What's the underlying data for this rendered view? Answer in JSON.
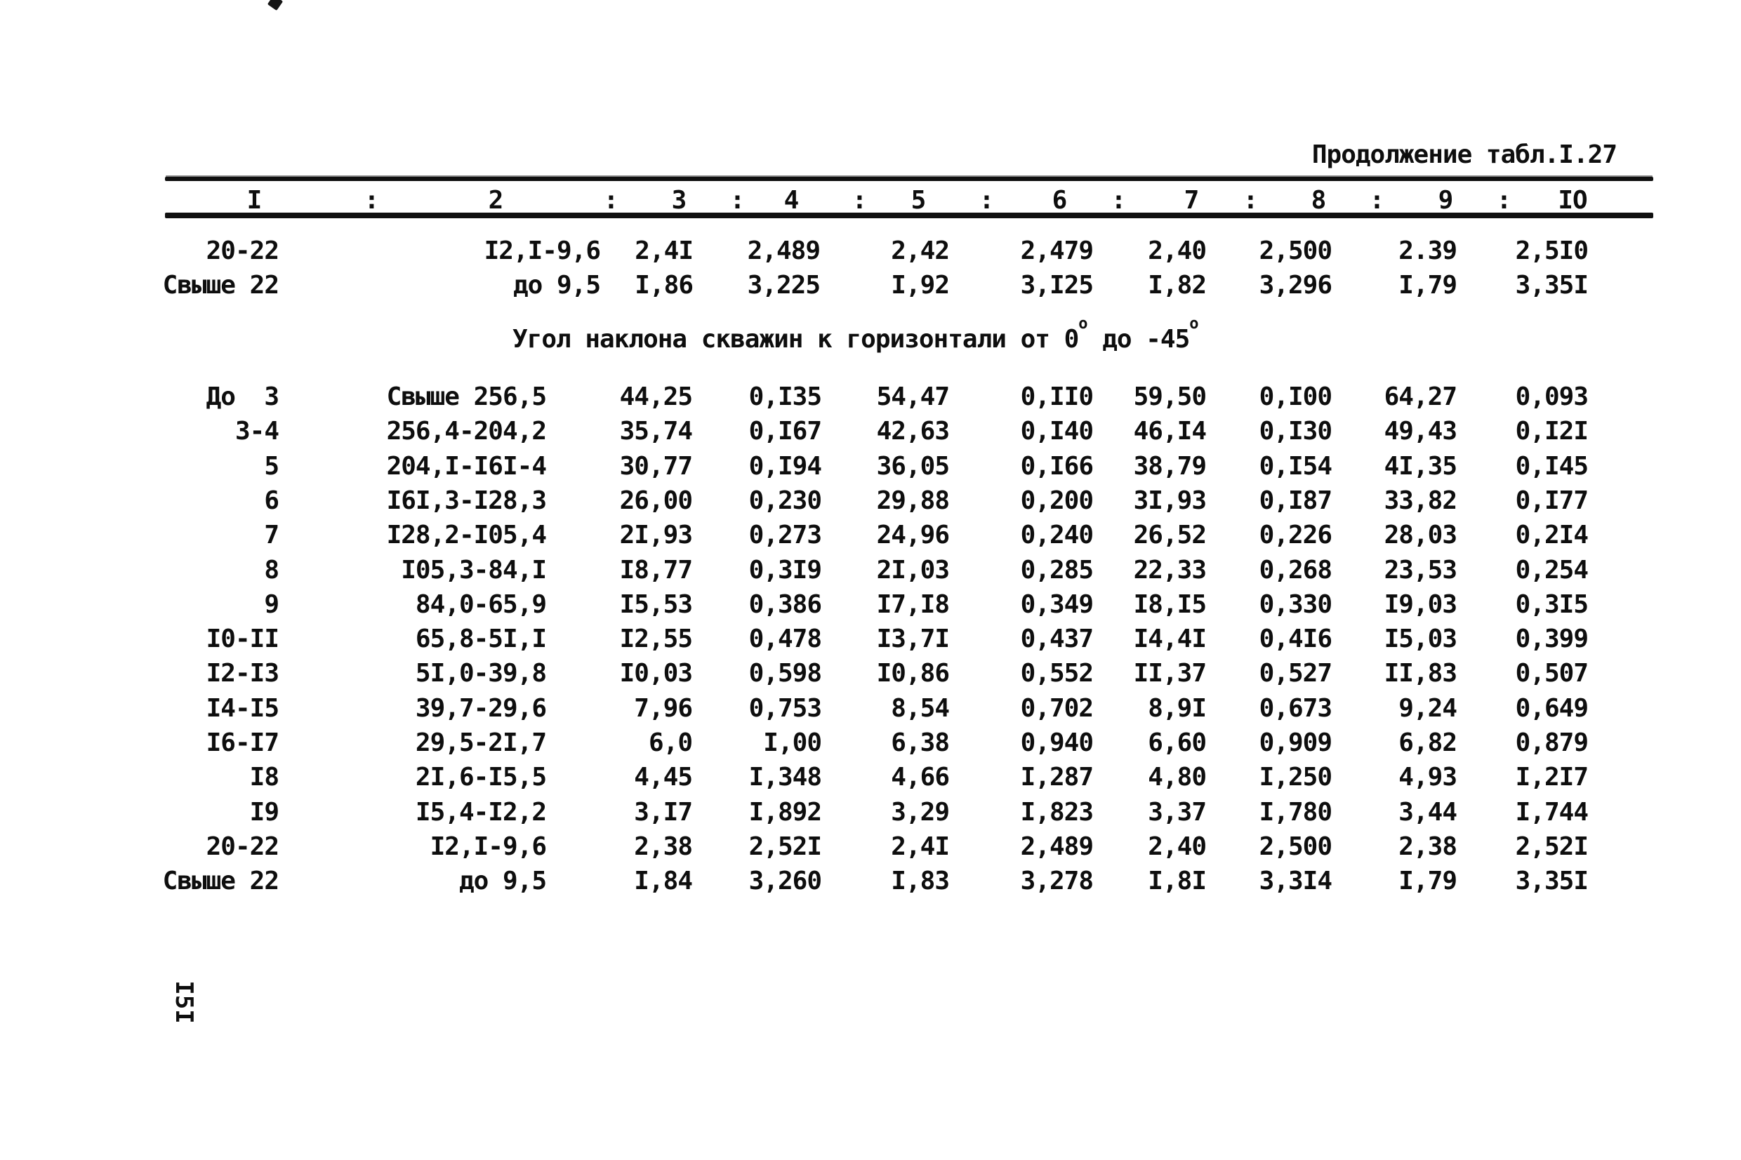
{
  "page": {
    "title": "Продолжение табл.I.27",
    "page_number": "I5I"
  },
  "colors": {
    "ink": "#0e0e0e",
    "paper": "#ffffff"
  },
  "table": {
    "header_cells": [
      "I",
      "2",
      "3",
      "4",
      "5",
      "6",
      "7",
      "8",
      "9",
      "IO"
    ],
    "header_separator": ":",
    "top_rows": [
      [
        "20-22",
        "I2,I-9,6",
        "2,4I",
        "2,489",
        "2,42",
        "2,479",
        "2,40",
        "2,500",
        "2.39",
        "2,5I0"
      ],
      [
        "Свыше 22",
        "до 9,5",
        "I,86",
        "3,225",
        "I,92",
        "3,I25",
        "I,82",
        "3,296",
        "I,79",
        "3,35I"
      ]
    ],
    "section_heading": {
      "part1": "Угол наклона скважин к горизонтали от 0",
      "sup1": "о",
      "part2": " до -45",
      "sup2": "о"
    },
    "body_rows": [
      [
        "До  3",
        "Свыше 256,5",
        "44,25",
        "0,I35",
        "54,47",
        "0,II0",
        "59,50",
        "0,I00",
        "64,27",
        "0,093"
      ],
      [
        "3-4",
        "256,4-204,2",
        "35,74",
        "0,I67",
        "42,63",
        "0,I40",
        "46,I4",
        "0,I30",
        "49,43",
        "0,I2I"
      ],
      [
        "5",
        "204,I-I6I-4",
        "30,77",
        "0,I94",
        "36,05",
        "0,I66",
        "38,79",
        "0,I54",
        "4I,35",
        "0,I45"
      ],
      [
        "6",
        "I6I,3-I28,3",
        "26,00",
        "0,230",
        "29,88",
        "0,200",
        "3I,93",
        "0,I87",
        "33,82",
        "0,I77"
      ],
      [
        "7",
        "I28,2-I05,4",
        "2I,93",
        "0,273",
        "24,96",
        "0,240",
        "26,52",
        "0,226",
        "28,03",
        "0,2I4"
      ],
      [
        "8",
        "I05,3-84,I",
        "I8,77",
        "0,3I9",
        "2I,03",
        "0,285",
        "22,33",
        "0,268",
        "23,53",
        "0,254"
      ],
      [
        "9",
        "84,0-65,9",
        "I5,53",
        "0,386",
        "I7,I8",
        "0,349",
        "I8,I5",
        "0,330",
        "I9,03",
        "0,3I5"
      ],
      [
        "I0-II",
        "65,8-5I,I",
        "I2,55",
        "0,478",
        "I3,7I",
        "0,437",
        "I4,4I",
        "0,4I6",
        "I5,03",
        "0,399"
      ],
      [
        "I2-I3",
        "5I,0-39,8",
        "I0,03",
        "0,598",
        "I0,86",
        "0,552",
        "II,37",
        "0,527",
        "II,83",
        "0,507"
      ],
      [
        "I4-I5",
        "39,7-29,6",
        "7,96",
        "0,753",
        "8,54",
        "0,702",
        "8,9I",
        "0,673",
        "9,24",
        "0,649"
      ],
      [
        "I6-I7",
        "29,5-2I,7",
        "6,0",
        "I,00",
        "6,38",
        "0,940",
        "6,60",
        "0,909",
        "6,82",
        "0,879"
      ],
      [
        "I8",
        "2I,6-I5,5",
        "4,45",
        "I,348",
        "4,66",
        "I,287",
        "4,80",
        "I,250",
        "4,93",
        "I,2I7"
      ],
      [
        "I9",
        "I5,4-I2,2",
        "3,I7",
        "I,892",
        "3,29",
        "I,823",
        "3,37",
        "I,780",
        "3,44",
        "I,744"
      ],
      [
        "20-22",
        "I2,I-9,6",
        "2,38",
        "2,52I",
        "2,4I",
        "2,489",
        "2,40",
        "2,500",
        "2,38",
        "2,52I"
      ],
      [
        "Свыше 22",
        "до 9,5",
        "I,84",
        "3,260",
        "I,83",
        "3,278",
        "I,8I",
        "3,3I4",
        "I,79",
        "3,35I"
      ]
    ]
  }
}
